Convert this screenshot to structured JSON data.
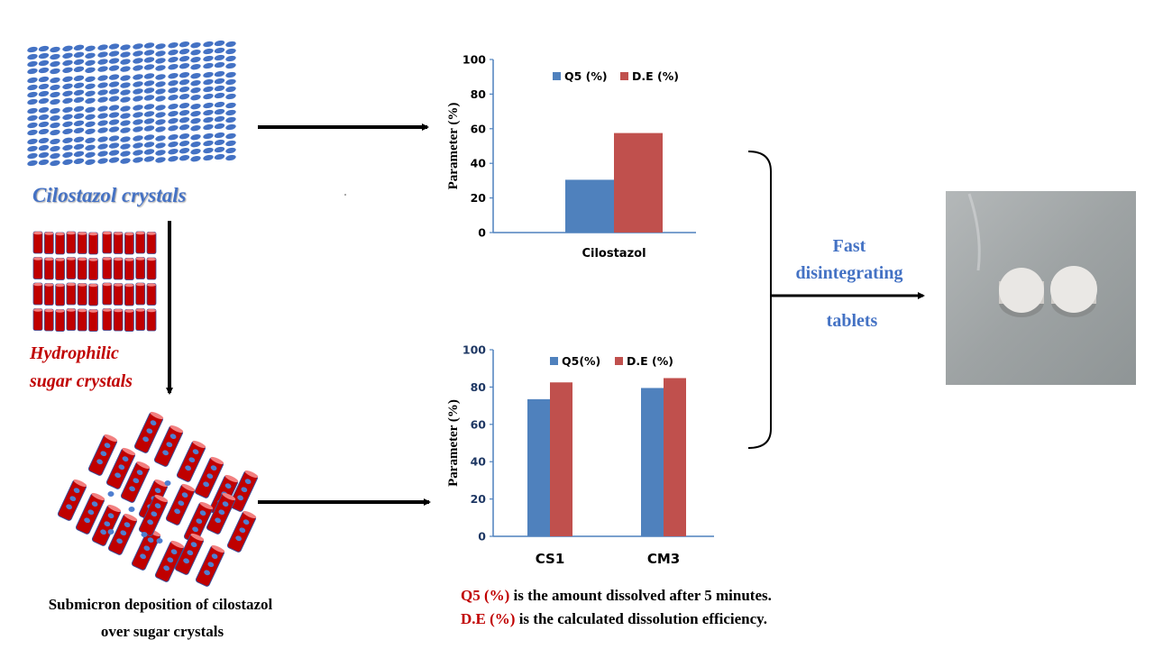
{
  "labels": {
    "cilostazol_crystals": "Cilostazol crystals",
    "sugar_line1": "Hydrophilic",
    "sugar_line2": "sugar crystals",
    "deposition_line1": "Submicron  deposition  of cilostazol",
    "deposition_line2": "over sugar  crystals",
    "result_line1": "Fast",
    "result_line2": "disintegrating",
    "result_line3": "tablets"
  },
  "footnote": {
    "q5_term": "Q5 (%)",
    "q5_text": " is the amount dissolved  after 5 minutes.",
    "de_term": "D.E (%)",
    "de_text": " is the calculated dissolution  efficiency."
  },
  "colors": {
    "q5": "#4f81bd",
    "de": "#c0504d",
    "axis": "#4f81bd",
    "crystal_blue": "#4472c4",
    "sugar_red": "#c00000",
    "label_red": "#c00000",
    "label_blue": "#4472c4"
  },
  "chart_data": [
    {
      "type": "bar",
      "categories": [
        "Cilostazol"
      ],
      "series": [
        {
          "name": "Q5 (%)",
          "values": [
            30.5
          ]
        },
        {
          "name": "D.E (%)",
          "values": [
            57.5
          ]
        }
      ],
      "ylabel": "Parameter (%)",
      "ylim": [
        0,
        100
      ],
      "yticks": [
        "0",
        "20",
        "40",
        "60",
        "80",
        "100"
      ],
      "legend": "top",
      "grid": false
    },
    {
      "type": "bar",
      "categories": [
        "CS1",
        "CM3"
      ],
      "series": [
        {
          "name": "Q5(%)",
          "values": [
            73.5,
            79.5
          ]
        },
        {
          "name": "D.E (%)",
          "values": [
            82.5,
            84.8
          ]
        }
      ],
      "ylabel": "Parameter (%)",
      "ylim": [
        0,
        100
      ],
      "yticks": [
        "0",
        "20",
        "40",
        "60",
        "80",
        "100"
      ],
      "legend": "top",
      "grid": false
    }
  ]
}
